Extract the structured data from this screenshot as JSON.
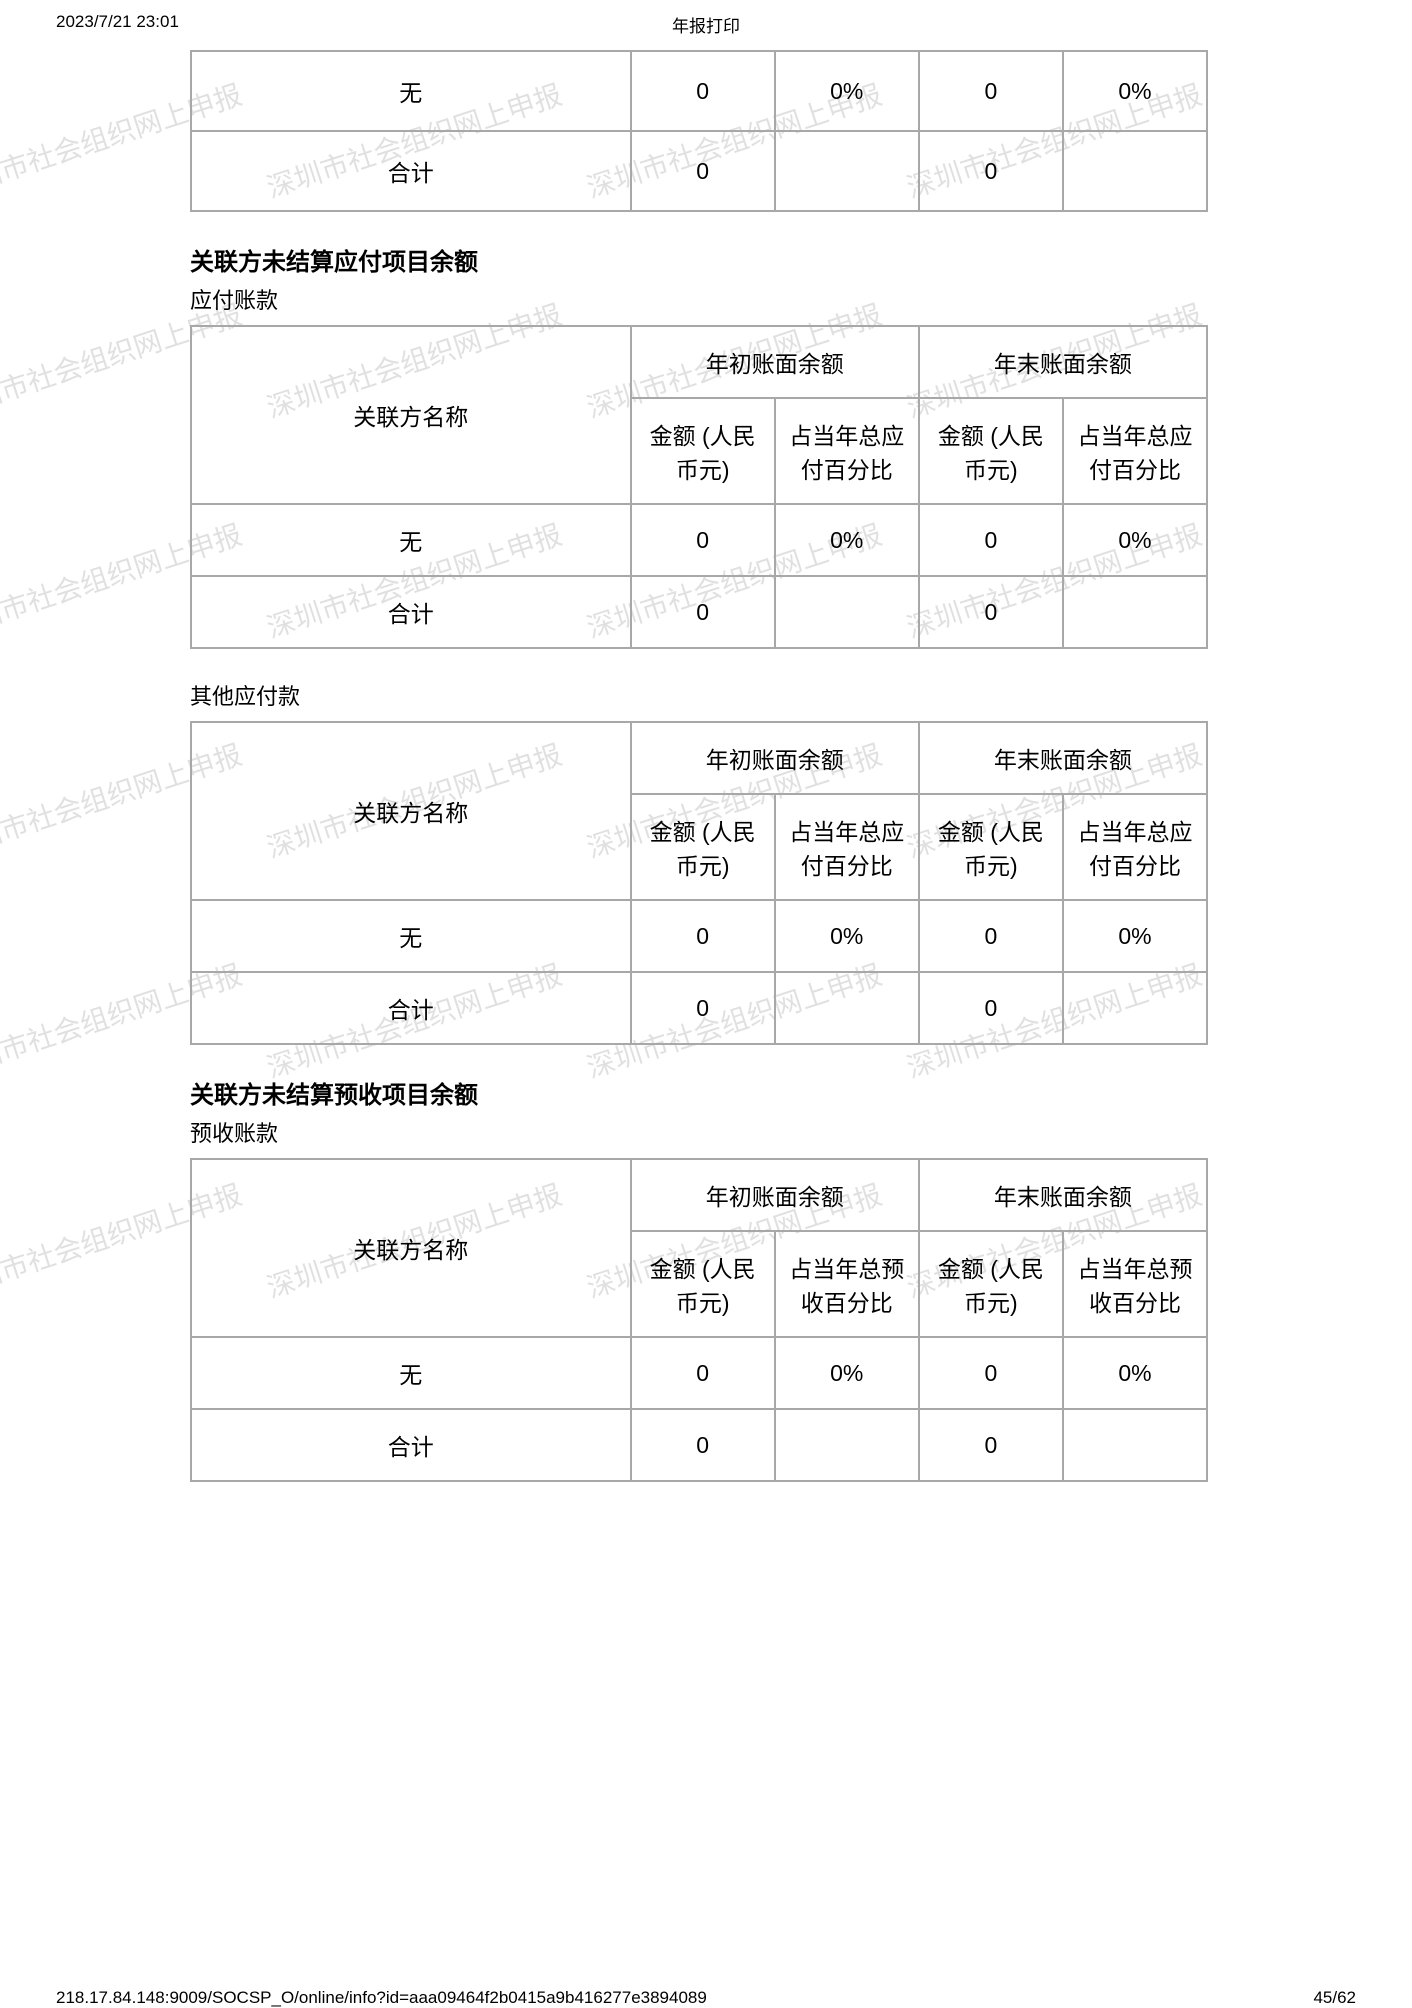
{
  "page_header": {
    "date_time": "2023/7/21 23:01",
    "title": "年报打印"
  },
  "page_footer": {
    "url": "218.17.84.148:9009/SOCSP_O/online/info?id=aaa09464f2b0415a9b416277e3894089",
    "page_num": "45/62"
  },
  "watermark_text": "深圳市社会组织网上申报",
  "top_fragment_table": {
    "rows": [
      {
        "name": "无",
        "a1": "0",
        "a2": "0%",
        "b1": "0",
        "b2": "0%"
      },
      {
        "name": "合计",
        "a1": "0",
        "a2": "",
        "b1": "0",
        "b2": ""
      }
    ]
  },
  "sections": [
    {
      "title": "关联方未结算应付项目余额",
      "subtables": [
        {
          "sub_label": "应付账款",
          "head": {
            "name": "关联方名称",
            "group_a": "年初账面余额",
            "group_b": "年末账面余额",
            "sub_a1": "金额 (人民币元)",
            "sub_a2": "占当年总应付百分比",
            "sub_b1": "金额 (人民币元)",
            "sub_b2": "占当年总应付百分比"
          },
          "rows": [
            {
              "name": "无",
              "a1": "0",
              "a2": "0%",
              "b1": "0",
              "b2": "0%"
            },
            {
              "name": "合计",
              "a1": "0",
              "a2": "",
              "b1": "0",
              "b2": ""
            }
          ]
        },
        {
          "sub_label": "其他应付款",
          "head": {
            "name": "关联方名称",
            "group_a": "年初账面余额",
            "group_b": "年末账面余额",
            "sub_a1": "金额 (人民币元)",
            "sub_a2": "占当年总应付百分比",
            "sub_b1": "金额 (人民币元)",
            "sub_b2": "占当年总应付百分比"
          },
          "rows": [
            {
              "name": "无",
              "a1": "0",
              "a2": "0%",
              "b1": "0",
              "b2": "0%"
            },
            {
              "name": "合计",
              "a1": "0",
              "a2": "",
              "b1": "0",
              "b2": ""
            }
          ]
        }
      ]
    },
    {
      "title": "关联方未结算预收项目余额",
      "subtables": [
        {
          "sub_label": "预收账款",
          "head": {
            "name": "关联方名称",
            "group_a": "年初账面余额",
            "group_b": "年末账面余额",
            "sub_a1": "金额 (人民币元)",
            "sub_a2": "占当年总预收百分比",
            "sub_b1": "金额 (人民币元)",
            "sub_b2": "占当年总预收百分比"
          },
          "rows": [
            {
              "name": "无",
              "a1": "0",
              "a2": "0%",
              "b1": "0",
              "b2": "0%"
            },
            {
              "name": "合计",
              "a1": "0",
              "a2": "",
              "b1": "0",
              "b2": ""
            }
          ]
        }
      ]
    }
  ]
}
